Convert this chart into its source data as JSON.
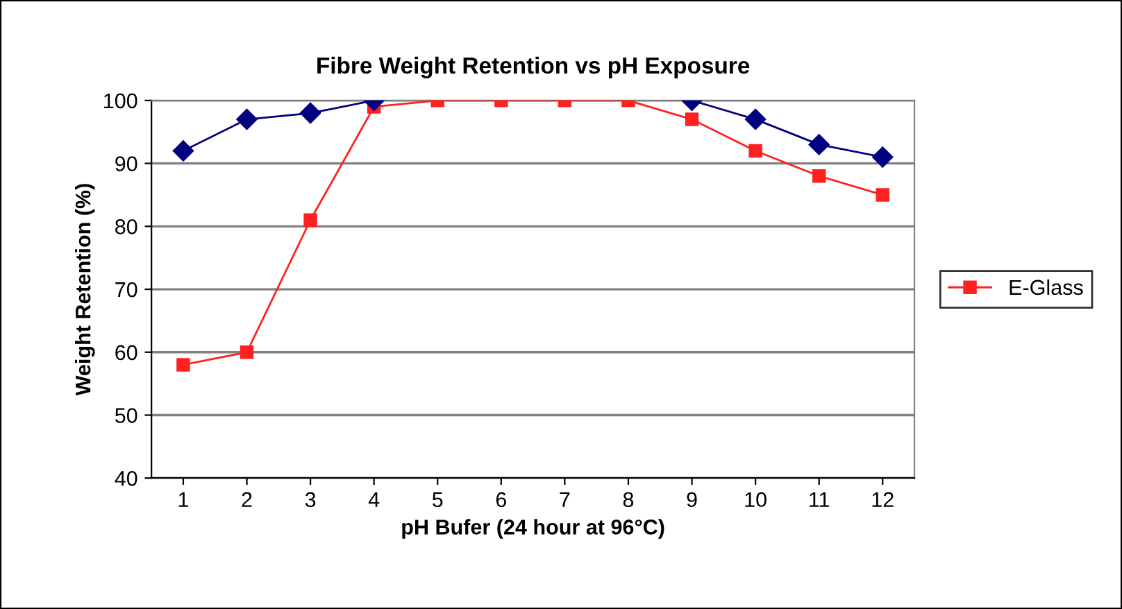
{
  "chart_data": {
    "type": "line",
    "title": "Fibre Weight Retention vs pH Exposure",
    "xlabel": "pH Bufer (24 hour at 96°C)",
    "ylabel": "Weight Retention (%)",
    "categories": [
      "1",
      "2",
      "3",
      "4",
      "5",
      "6",
      "7",
      "8",
      "9",
      "10",
      "11",
      "12"
    ],
    "series": [
      {
        "color": "#000080",
        "marker": "diamond",
        "values": [
          92,
          97,
          98,
          100,
          null,
          null,
          null,
          null,
          100,
          97,
          93,
          91
        ]
      },
      {
        "name": "E-Glass",
        "color": "#ff2020",
        "marker": "square",
        "values": [
          58,
          60,
          81,
          99,
          100,
          100,
          100,
          100,
          97,
          92,
          88,
          85
        ]
      }
    ],
    "ylim": [
      40,
      100
    ],
    "yticks": [
      40,
      50,
      60,
      70,
      80,
      90,
      100
    ],
    "grid": "y",
    "legend": "right"
  }
}
